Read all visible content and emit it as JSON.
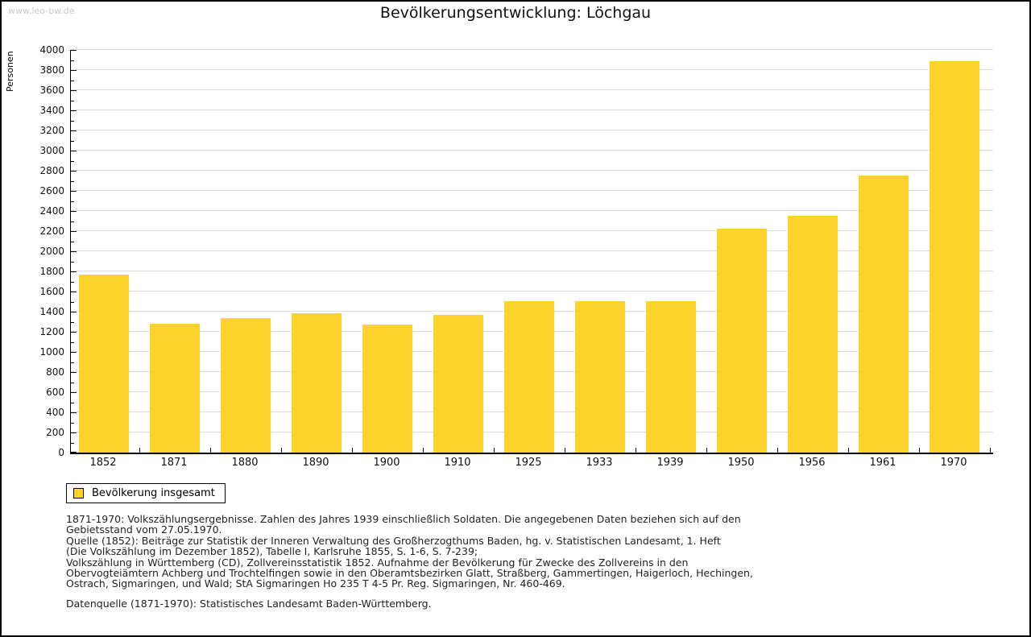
{
  "page": {
    "watermark": "www.leo-bw.de",
    "title": "Bevölkerungsentwicklung: Löchgau"
  },
  "chart_data": {
    "type": "bar",
    "title": "Bevölkerungsentwicklung: Löchgau",
    "xlabel": "",
    "ylabel": "Personen",
    "categories": [
      "1852",
      "1871",
      "1880",
      "1890",
      "1900",
      "1910",
      "1925",
      "1933",
      "1939",
      "1950",
      "1956",
      "1961",
      "1970"
    ],
    "values": [
      1765,
      1280,
      1335,
      1385,
      1270,
      1365,
      1505,
      1500,
      1505,
      2220,
      2350,
      2755,
      3885
    ],
    "ylim": [
      0,
      4000
    ],
    "ytick_step": 200,
    "yminor_step": 100,
    "grid": true,
    "bar_color": "#fdd32b",
    "grid_color": "#dedede",
    "legend_position": "bottom-left",
    "legend_entries": [
      "Bevölkerung insgesamt"
    ]
  },
  "legend": {
    "label": "Bevölkerung insgesamt",
    "swatch_color": "#fdd32b"
  },
  "footnotes": {
    "lines": [
      "1871-1970: Volkszählungsergebnisse. Zahlen des Jahres 1939 einschließlich Soldaten. Die angegebenen Daten beziehen sich auf den",
      "Gebietsstand vom 27.05.1970.",
      "Quelle (1852): Beiträge zur Statistik der Inneren Verwaltung des Großherzogthums Baden, hg. v. Statistischen Landesamt, 1. Heft",
      "(Die Volkszählung im Dezember 1852), Tabelle I, Karlsruhe 1855, S. 1-6, S. 7-239;",
      "Volkszählung in Württemberg (CD), Zollvereinsstatistik 1852. Aufnahme der Bevölkerung für Zwecke des Zollvereins in den",
      "Obervogteiämtern Achberg und Trochtelfingen sowie in den Oberamtsbezirken Glatt, Straßberg, Gammertingen, Haigerloch, Hechingen,",
      "Ostrach, Sigmaringen, und Wald; StA Sigmaringen Ho 235 T 4-5 Pr. Reg. Sigmaringen, Nr. 460-469."
    ],
    "datasource": "Datenquelle (1871-1970): Statistisches Landesamt Baden-Württemberg."
  }
}
